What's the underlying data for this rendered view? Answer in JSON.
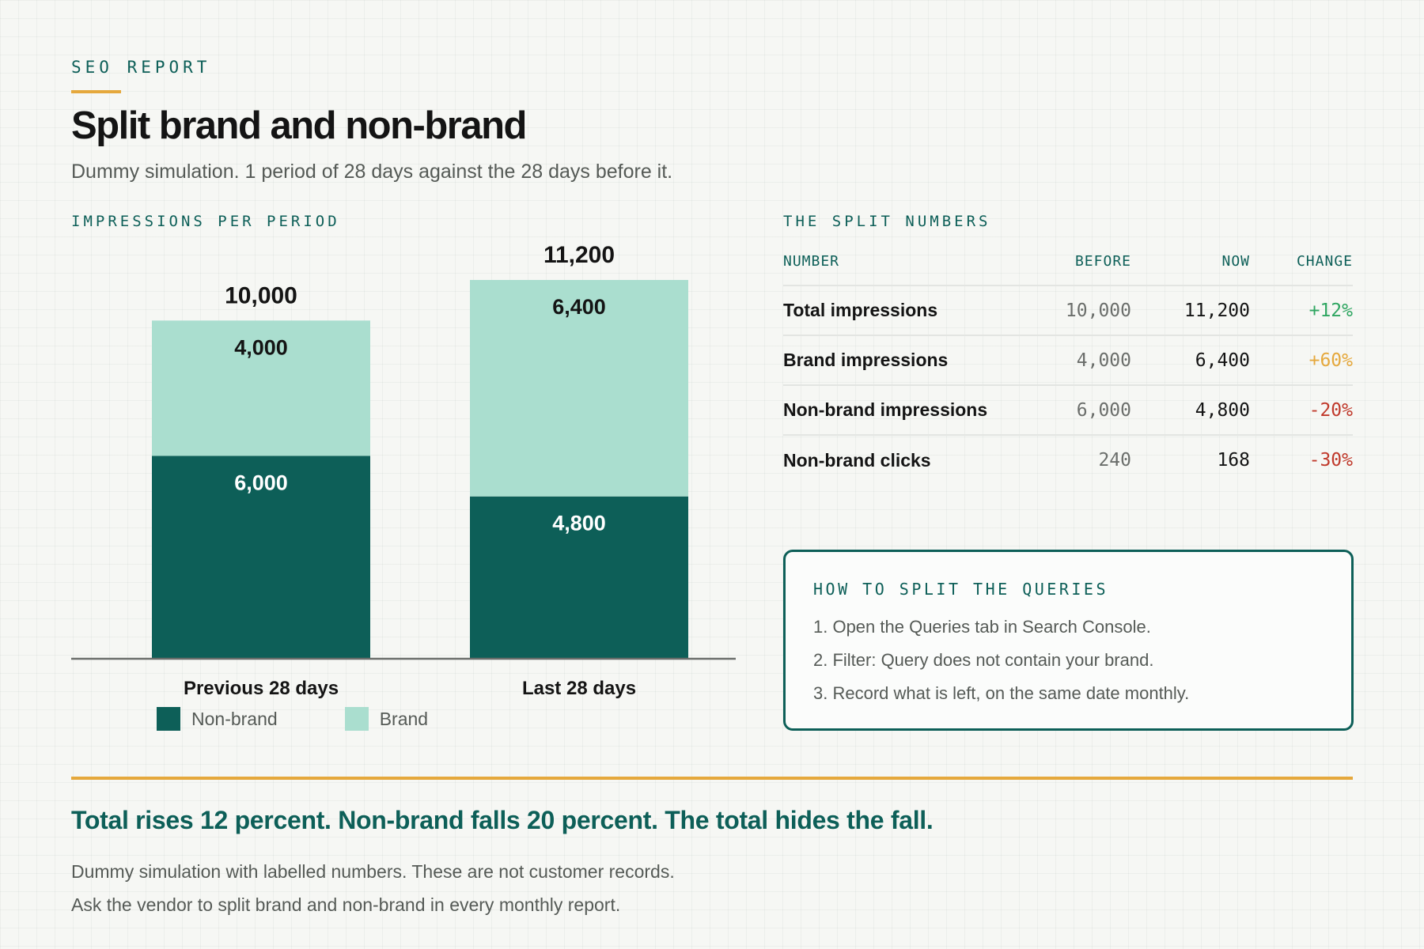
{
  "header": {
    "eyebrow": "SEO REPORT",
    "title": "Split brand and non-brand",
    "subtitle": "Dummy simulation. 1 period of 28 days against the 28 days before it."
  },
  "chart_section": {
    "label": "IMPRESSIONS PER PERIOD"
  },
  "chart_data": {
    "type": "bar",
    "stacked": true,
    "categories": [
      "Previous 28 days",
      "Last 28 days"
    ],
    "series": [
      {
        "name": "Non-brand",
        "values": [
          6000,
          4800
        ],
        "color": "#0d5f58",
        "label_color": "#ffffff"
      },
      {
        "name": "Brand",
        "values": [
          4000,
          6400
        ],
        "color": "#aadecf",
        "label_color": "#141414"
      }
    ],
    "segment_labels": [
      [
        "6,000",
        "4,000"
      ],
      [
        "4,800",
        "6,400"
      ]
    ],
    "totals": [
      10000,
      11200
    ],
    "total_labels": [
      "10,000",
      "11,200"
    ],
    "ylim": [
      0,
      11200
    ],
    "grid": false,
    "legend": "bottom-left"
  },
  "legend": {
    "items": [
      {
        "label": "Non-brand",
        "color": "#0d5f58"
      },
      {
        "label": "Brand",
        "color": "#aadecf"
      }
    ]
  },
  "table": {
    "label": "THE SPLIT NUMBERS",
    "headers": {
      "number": "NUMBER",
      "before": "BEFORE",
      "now": "NOW",
      "change": "CHANGE"
    },
    "rows": [
      {
        "label": "Total impressions",
        "before": "10,000",
        "now": "11,200",
        "change": "+12%",
        "change_color": "#2fa661"
      },
      {
        "label": "Brand impressions",
        "before": "4,000",
        "now": "6,400",
        "change": "+60%",
        "change_color": "#e5a83c"
      },
      {
        "label": "Non-brand impressions",
        "before": "6,000",
        "now": "4,800",
        "change": "-20%",
        "change_color": "#c0392b"
      },
      {
        "label": "Non-brand clicks",
        "before": "240",
        "now": "168",
        "change": "-30%",
        "change_color": "#c0392b"
      }
    ]
  },
  "howto": {
    "title": "HOW TO SPLIT THE QUERIES",
    "steps": [
      "1. Open the Queries tab in Search Console.",
      "2. Filter: Query does not contain your brand.",
      "3. Record what is left, on the same date monthly."
    ]
  },
  "footer": {
    "takeaway": "Total rises 12 percent. Non-brand falls 20 percent. The total hides the fall.",
    "note_1": "Dummy simulation with labelled numbers. These are not customer records.",
    "note_2": "Ask the vendor to split brand and non-brand in every monthly report."
  }
}
